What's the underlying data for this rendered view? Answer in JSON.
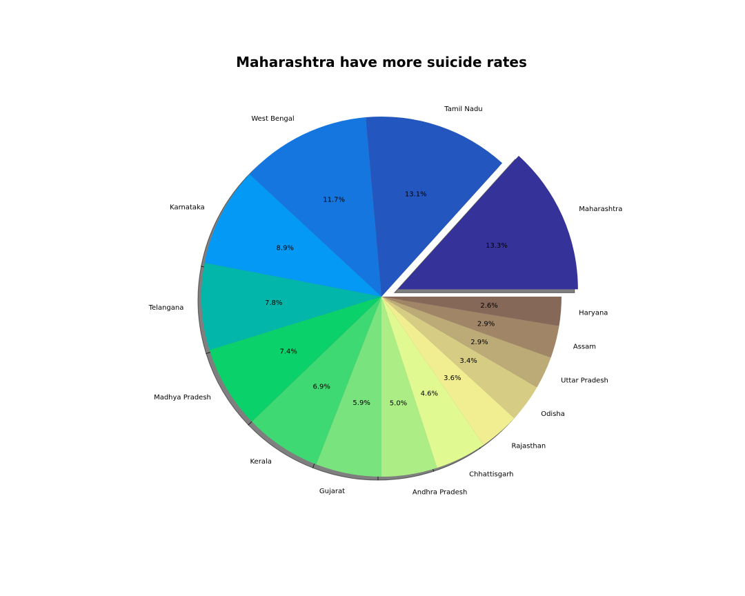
{
  "chart_data": {
    "type": "pie",
    "title": "Maharashtra have more suicide rates",
    "start_angle_deg": 0,
    "direction": "counterclockwise",
    "shadow": true,
    "exploded": [
      "Maharashtra"
    ],
    "slices": [
      {
        "label": "Maharashtra",
        "pct": 13.3,
        "pct_label": "13.3%",
        "color": "#35339a"
      },
      {
        "label": "Tamil Nadu",
        "pct": 13.1,
        "pct_label": "13.1%",
        "color": "#2357bf"
      },
      {
        "label": "West Bengal",
        "pct": 11.7,
        "pct_label": "11.7%",
        "color": "#1476de"
      },
      {
        "label": "Karnataka",
        "pct": 8.9,
        "pct_label": "8.9%",
        "color": "#0399f4"
      },
      {
        "label": "Telangana",
        "pct": 7.8,
        "pct_label": "7.8%",
        "color": "#02b6aa"
      },
      {
        "label": "Madhya Pradesh",
        "pct": 7.4,
        "pct_label": "7.4%",
        "color": "#0ad169"
      },
      {
        "label": "Kerala",
        "pct": 6.9,
        "pct_label": "6.9%",
        "color": "#3ed973"
      },
      {
        "label": "Gujarat",
        "pct": 5.9,
        "pct_label": "5.9%",
        "color": "#79e37d"
      },
      {
        "label": "Andhra Pradesh",
        "pct": 5.0,
        "pct_label": "5.0%",
        "color": "#acee85"
      },
      {
        "label": "Chhattisgarh",
        "pct": 4.6,
        "pct_label": "4.6%",
        "color": "#e1f991"
      },
      {
        "label": "Rajasthan",
        "pct": 3.6,
        "pct_label": "3.6%",
        "color": "#f1ed91"
      },
      {
        "label": "Odisha",
        "pct": 3.4,
        "pct_label": "3.4%",
        "color": "#d6cc84"
      },
      {
        "label": "Uttar Pradesh",
        "pct": 2.9,
        "pct_label": "2.9%",
        "color": "#bcaa77"
      },
      {
        "label": "Assam",
        "pct": 2.9,
        "pct_label": "2.9%",
        "color": "#a08567"
      },
      {
        "label": "Haryana",
        "pct": 2.6,
        "pct_label": "2.6%",
        "color": "#866859"
      }
    ]
  }
}
